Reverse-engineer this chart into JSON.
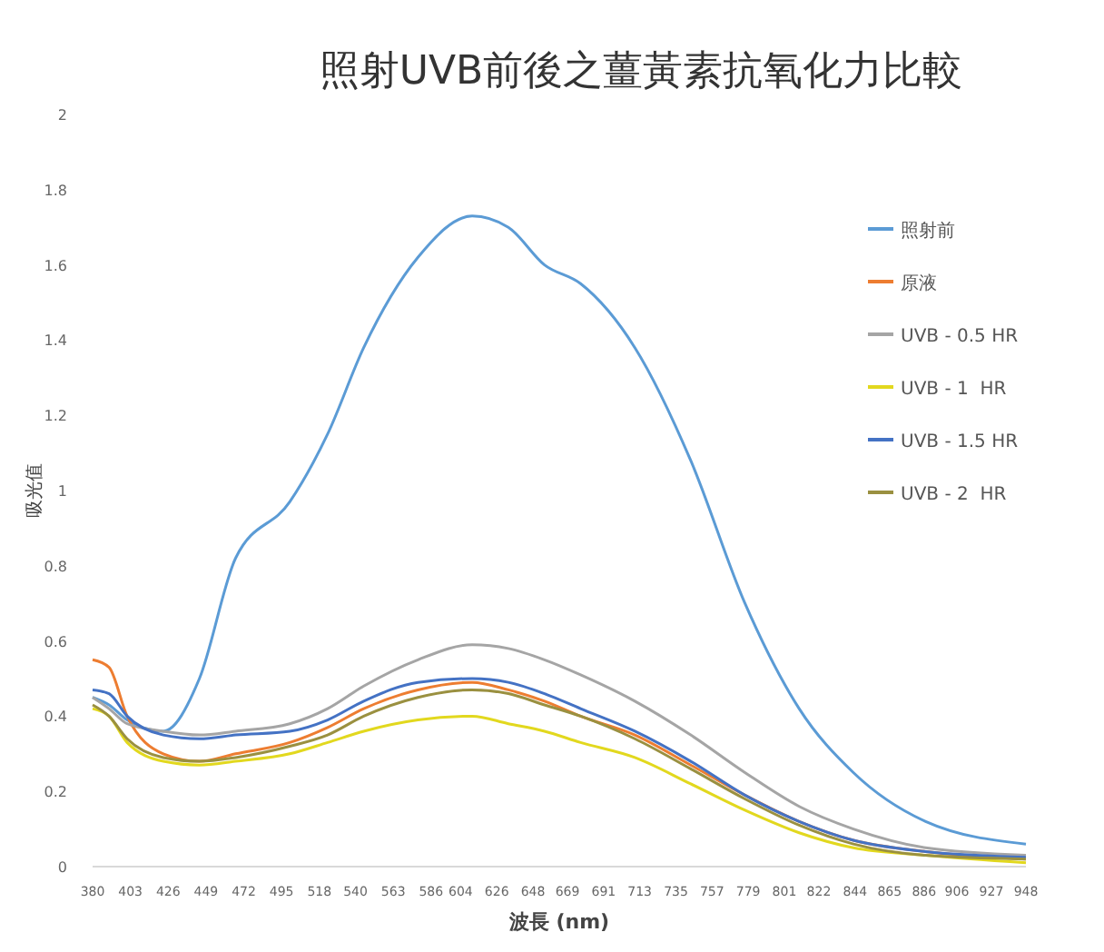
{
  "chart_data": {
    "type": "line",
    "title": "照射UVB前後之薑黃素抗氧化力比較",
    "xlabel": "波長 (nm)",
    "ylabel": "吸光值",
    "xlim": [
      380,
      948
    ],
    "xticks": [
      380,
      403,
      426,
      449,
      472,
      495,
      518,
      540,
      563,
      586,
      604,
      626,
      648,
      669,
      691,
      713,
      735,
      757,
      779,
      801,
      822,
      844,
      865,
      886,
      906,
      927,
      948
    ],
    "ylim": [
      0,
      2
    ],
    "yticks": [
      0,
      0.2,
      0.4,
      0.6,
      0.8,
      1,
      1.2,
      1.4,
      1.6,
      1.8,
      2
    ],
    "grid": false,
    "legend": "right",
    "marker": "none",
    "line_style": "solid",
    "x": [
      380,
      390,
      401,
      423,
      445,
      467,
      500,
      523,
      545,
      578,
      611,
      633,
      655,
      677,
      710,
      744,
      777,
      810,
      843,
      887,
      948
    ],
    "series": [
      {
        "name": "照射前",
        "color": "#5b9bd5",
        "values": [
          0.45,
          0.43,
          0.39,
          0.36,
          0.5,
          0.82,
          0.97,
          1.15,
          1.38,
          1.62,
          1.73,
          1.7,
          1.6,
          1.55,
          1.38,
          1.08,
          0.7,
          0.42,
          0.25,
          0.12,
          0.06
        ]
      },
      {
        "name": "原液",
        "color": "#ed7d31",
        "values": [
          0.55,
          0.53,
          0.4,
          0.3,
          0.28,
          0.3,
          0.33,
          0.37,
          0.42,
          0.47,
          0.49,
          0.47,
          0.44,
          0.4,
          0.35,
          0.27,
          0.19,
          0.12,
          0.07,
          0.04,
          0.02
        ]
      },
      {
        "name": "UVB - 0.5 HR",
        "color": "#a5a5a5",
        "values": [
          0.45,
          0.42,
          0.38,
          0.36,
          0.35,
          0.36,
          0.38,
          0.42,
          0.48,
          0.55,
          0.59,
          0.58,
          0.55,
          0.51,
          0.44,
          0.35,
          0.25,
          0.16,
          0.1,
          0.05,
          0.03
        ]
      },
      {
        "name": "UVB - 1  HR",
        "color": "#e2d81e",
        "values": [
          0.42,
          0.4,
          0.33,
          0.28,
          0.27,
          0.28,
          0.3,
          0.33,
          0.36,
          0.39,
          0.4,
          0.38,
          0.36,
          0.33,
          0.29,
          0.22,
          0.15,
          0.09,
          0.05,
          0.03,
          0.01
        ]
      },
      {
        "name": "UVB - 1.5 HR",
        "color": "#4472c4",
        "values": [
          0.47,
          0.46,
          0.4,
          0.35,
          0.34,
          0.35,
          0.36,
          0.39,
          0.44,
          0.49,
          0.5,
          0.49,
          0.46,
          0.42,
          0.36,
          0.28,
          0.19,
          0.12,
          0.07,
          0.04,
          0.025
        ]
      },
      {
        "name": "UVB - 2  HR",
        "color": "#9a9040",
        "values": [
          0.43,
          0.4,
          0.34,
          0.29,
          0.28,
          0.29,
          0.32,
          0.35,
          0.4,
          0.45,
          0.47,
          0.46,
          0.43,
          0.4,
          0.34,
          0.26,
          0.18,
          0.11,
          0.06,
          0.03,
          0.02
        ]
      }
    ]
  }
}
